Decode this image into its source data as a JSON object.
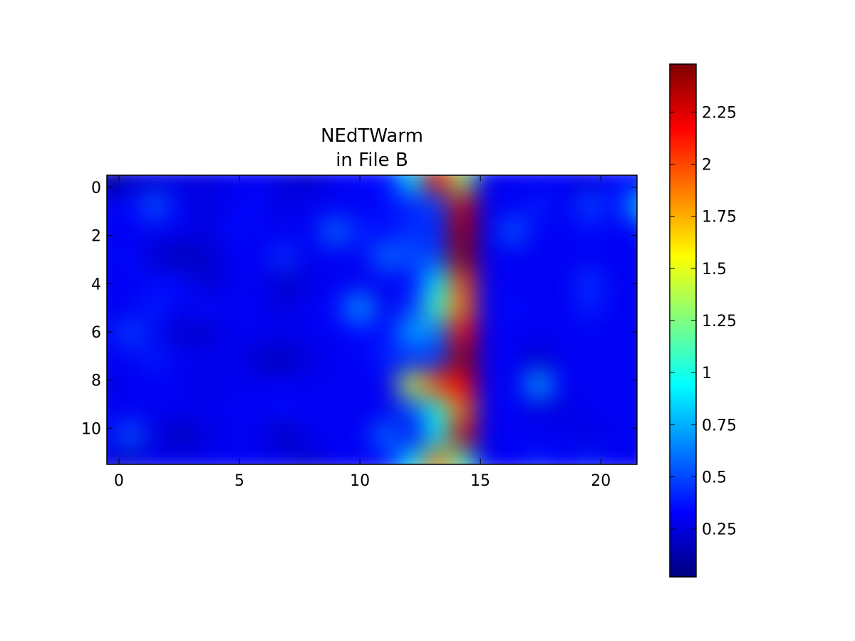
{
  "chart_data": {
    "type": "heatmap",
    "title": "NEdTWarm",
    "subtitle": "in File B",
    "x_ticks": [
      0,
      5,
      10,
      15,
      20
    ],
    "y_ticks": [
      0,
      2,
      4,
      6,
      8,
      10
    ],
    "x_range": [
      -0.5,
      21.5
    ],
    "y_range": [
      11.5,
      -0.5
    ],
    "colorbar": {
      "colormap": "jet",
      "range": [
        0.02,
        2.48
      ],
      "ticks": [
        "0.25",
        "0.5",
        "0.75",
        "1",
        "1.25",
        "1.5",
        "1.75",
        "2",
        "2.25"
      ]
    },
    "values": [
      [
        0.05,
        0.2,
        0.25,
        0.25,
        0.25,
        0.3,
        0.3,
        0.25,
        0.2,
        0.3,
        0.35,
        0.35,
        0.9,
        2.2,
        1.3,
        0.3,
        0.3,
        0.3,
        0.3,
        0.25,
        0.35,
        0.35
      ],
      [
        0.3,
        0.35,
        0.55,
        0.3,
        0.25,
        0.3,
        0.35,
        0.25,
        0.3,
        0.3,
        0.3,
        0.35,
        0.4,
        0.5,
        2.3,
        0.3,
        0.3,
        0.4,
        0.3,
        0.5,
        0.35,
        0.85
      ],
      [
        0.3,
        0.3,
        0.3,
        0.3,
        0.25,
        0.35,
        0.3,
        0.3,
        0.3,
        0.6,
        0.4,
        0.35,
        0.45,
        0.4,
        2.4,
        0.3,
        0.55,
        0.3,
        0.3,
        0.35,
        0.3,
        0.35
      ],
      [
        0.3,
        0.35,
        0.2,
        0.15,
        0.2,
        0.3,
        0.3,
        0.45,
        0.3,
        0.3,
        0.3,
        0.6,
        0.5,
        0.5,
        2.45,
        0.3,
        0.3,
        0.3,
        0.3,
        0.3,
        0.3,
        0.3
      ],
      [
        0.3,
        0.3,
        0.35,
        0.35,
        0.2,
        0.3,
        0.3,
        0.2,
        0.25,
        0.3,
        0.3,
        0.3,
        0.35,
        0.9,
        2.0,
        0.3,
        0.3,
        0.3,
        0.3,
        0.45,
        0.3,
        0.3
      ],
      [
        0.3,
        0.3,
        0.4,
        0.3,
        0.35,
        0.3,
        0.3,
        0.25,
        0.3,
        0.35,
        0.75,
        0.3,
        0.45,
        1.1,
        1.9,
        0.3,
        0.35,
        0.3,
        0.3,
        0.4,
        0.3,
        0.3
      ],
      [
        0.3,
        0.5,
        0.3,
        0.2,
        0.2,
        0.3,
        0.3,
        0.3,
        0.3,
        0.3,
        0.35,
        0.35,
        0.75,
        0.6,
        2.2,
        0.3,
        0.3,
        0.3,
        0.3,
        0.3,
        0.3,
        0.3
      ],
      [
        0.3,
        0.3,
        0.4,
        0.3,
        0.3,
        0.3,
        0.2,
        0.15,
        0.25,
        0.3,
        0.3,
        0.4,
        0.4,
        0.45,
        2.45,
        0.3,
        0.3,
        0.2,
        0.3,
        0.3,
        0.3,
        0.3
      ],
      [
        0.25,
        0.3,
        0.3,
        0.3,
        0.25,
        0.3,
        0.3,
        0.3,
        0.3,
        0.3,
        0.3,
        0.3,
        1.4,
        2.0,
        2.2,
        0.3,
        0.3,
        0.75,
        0.3,
        0.3,
        0.3,
        0.3
      ],
      [
        0.3,
        0.3,
        0.3,
        0.3,
        0.3,
        0.3,
        0.3,
        0.35,
        0.3,
        0.3,
        0.3,
        0.3,
        0.5,
        1.0,
        1.9,
        0.3,
        0.3,
        0.25,
        0.25,
        0.3,
        0.3,
        0.3
      ],
      [
        0.3,
        0.55,
        0.25,
        0.15,
        0.25,
        0.3,
        0.3,
        0.15,
        0.3,
        0.3,
        0.3,
        0.6,
        0.3,
        0.9,
        2.3,
        0.3,
        0.3,
        0.3,
        0.3,
        0.25,
        0.3,
        0.3
      ],
      [
        0.25,
        0.2,
        0.3,
        0.3,
        0.3,
        0.3,
        0.3,
        0.3,
        0.2,
        0.3,
        0.3,
        0.35,
        0.9,
        1.9,
        1.1,
        0.3,
        0.3,
        0.4,
        0.3,
        0.4,
        0.3,
        0.3
      ]
    ]
  }
}
